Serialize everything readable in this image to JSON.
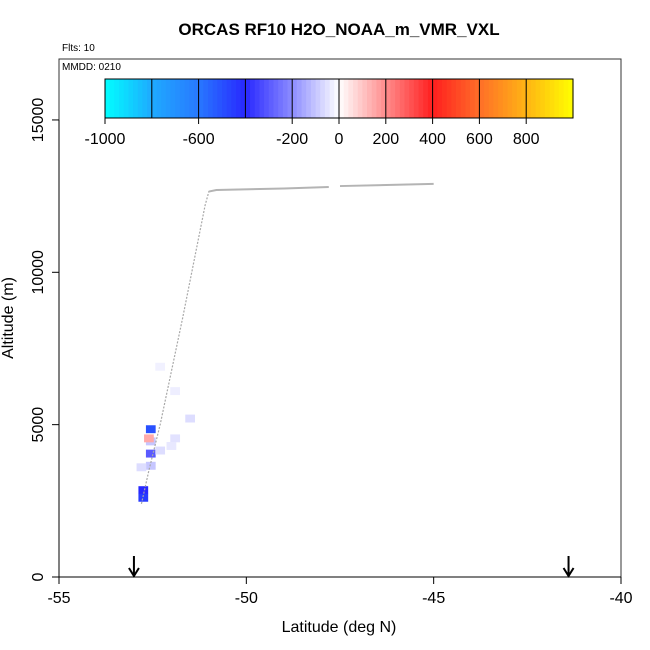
{
  "chart_data": {
    "type": "scatter",
    "title": "ORCAS RF10 H2O_NOAA_m_VMR_VXL",
    "flights_note": "Flts: 10",
    "date_note": "MMDD: 0210",
    "xlabel": "Latitude (deg N)",
    "ylabel": "Altitude (m)",
    "xlim": [
      -55,
      -40
    ],
    "ylim": [
      0,
      17000
    ],
    "x_ticks": [
      -55,
      -50,
      -45,
      -40
    ],
    "x_tick_labels": [
      "-55",
      "-50",
      "-45",
      "-40"
    ],
    "y_ticks": [
      0,
      5000,
      10000,
      15000
    ],
    "y_tick_labels": [
      "0",
      "5000",
      "10000",
      "15000"
    ],
    "colorbar": {
      "range": [
        -1000,
        1000
      ],
      "tick_values": [
        -1000,
        -600,
        -200,
        0,
        200,
        400,
        600,
        800
      ],
      "tick_labels": [
        "-1000",
        "-600",
        "-200",
        "0",
        "200",
        "400",
        "600",
        "800"
      ]
    },
    "flight_track": [
      {
        "lat": -52.8,
        "alt": 2400
      },
      {
        "lat": -52.6,
        "alt": 3500
      },
      {
        "lat": -52.3,
        "alt": 5000
      },
      {
        "lat": -51.7,
        "alt": 8500
      },
      {
        "lat": -51.1,
        "alt": 12200
      },
      {
        "lat": -51.0,
        "alt": 12650
      },
      {
        "lat": -50.8,
        "alt": 12700
      },
      {
        "lat": -49.0,
        "alt": 12750
      },
      {
        "lat": -47.8,
        "alt": 12800
      }
    ],
    "flight_track_2": [
      {
        "lat": -47.5,
        "alt": 12830
      },
      {
        "lat": -45.0,
        "alt": 12900
      }
    ],
    "cells": [
      {
        "lat": -52.55,
        "alt": 4850,
        "value": -500
      },
      {
        "lat": -52.55,
        "alt": 4450,
        "value": -100
      },
      {
        "lat": -52.55,
        "alt": 4050,
        "value": -300
      },
      {
        "lat": -52.55,
        "alt": 3650,
        "value": -100
      },
      {
        "lat": -52.75,
        "alt": 2850,
        "value": -400
      },
      {
        "lat": -52.75,
        "alt": 2600,
        "value": -450
      },
      {
        "lat": -52.6,
        "alt": 4550,
        "value": 150
      },
      {
        "lat": -52.3,
        "alt": 4150,
        "value": -60
      },
      {
        "lat": -51.9,
        "alt": 4550,
        "value": -50
      },
      {
        "lat": -51.5,
        "alt": 5200,
        "value": -60
      },
      {
        "lat": -52.0,
        "alt": 4300,
        "value": -40
      },
      {
        "lat": -51.9,
        "alt": 6100,
        "value": -30
      },
      {
        "lat": -52.3,
        "alt": 6900,
        "value": -25
      },
      {
        "lat": -52.8,
        "alt": 3600,
        "value": -60
      }
    ],
    "arrows_at_lat": [
      -53.0,
      -41.4
    ],
    "grid": false,
    "legend": "top (colorbar)"
  }
}
